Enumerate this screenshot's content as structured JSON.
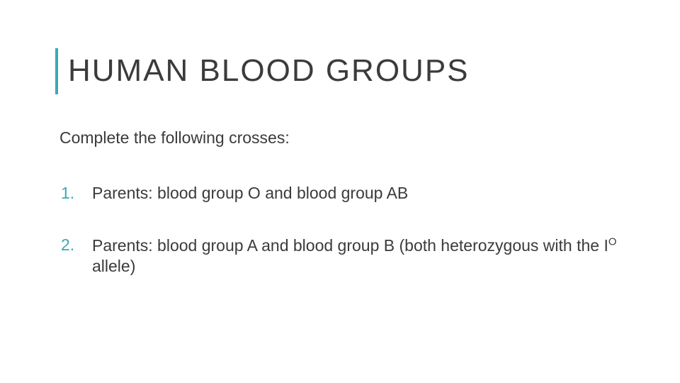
{
  "slide": {
    "accent_color": "#3aa9b5",
    "text_color": "#3b3b3b",
    "background_color": "#ffffff",
    "title": "HUMAN BLOOD GROUPS",
    "title_fontsize": 44,
    "title_letter_spacing": 2,
    "subtitle": "Complete the following crosses:",
    "body_fontsize": 23,
    "items": [
      {
        "text": "Parents: blood group O and blood group AB"
      },
      {
        "text_html": "Parents: blood group A and blood group B (both heterozygous with the I<sup>O</sup> allele)"
      }
    ]
  }
}
